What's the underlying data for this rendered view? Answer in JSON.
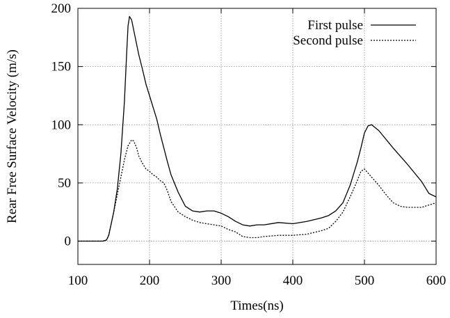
{
  "chart_data": {
    "type": "line",
    "xlabel": "Times(ns)",
    "ylabel": "Rear Free Surface Velocity (m/s)",
    "xlim": [
      100,
      600
    ],
    "ylim": [
      -20,
      200
    ],
    "xticks": [
      100,
      200,
      300,
      400,
      500,
      600
    ],
    "yticks": [
      0,
      50,
      100,
      150,
      200
    ],
    "grid": true,
    "legend_position": "top-right",
    "series": [
      {
        "name": "First pulse",
        "style": "solid",
        "color": "#000000",
        "x": [
          100,
          120,
          135,
          140,
          143,
          150,
          155,
          160,
          165,
          168,
          170,
          172,
          175,
          180,
          185,
          190,
          195,
          200,
          205,
          210,
          215,
          220,
          225,
          230,
          240,
          250,
          260,
          270,
          280,
          290,
          300,
          310,
          320,
          330,
          340,
          350,
          360,
          380,
          400,
          420,
          440,
          450,
          460,
          470,
          480,
          490,
          495,
          500,
          505,
          510,
          520,
          540,
          560,
          580,
          590,
          600
        ],
        "y": [
          0,
          0,
          0,
          1,
          5,
          25,
          45,
          75,
          120,
          160,
          185,
          193,
          190,
          175,
          160,
          148,
          135,
          125,
          115,
          105,
          92,
          80,
          68,
          57,
          42,
          30,
          26,
          25,
          26,
          26,
          24,
          21,
          17,
          14,
          13,
          14,
          14,
          16,
          15,
          17,
          20,
          22,
          26,
          33,
          48,
          68,
          80,
          93,
          99,
          100,
          95,
          80,
          66,
          51,
          41,
          38
        ]
      },
      {
        "name": "Second pulse",
        "style": "dotted",
        "color": "#000000",
        "x": [
          100,
          120,
          135,
          140,
          143,
          150,
          155,
          160,
          165,
          170,
          175,
          178,
          182,
          185,
          190,
          195,
          200,
          205,
          210,
          215,
          220,
          225,
          230,
          240,
          250,
          260,
          270,
          280,
          290,
          300,
          310,
          320,
          330,
          340,
          350,
          360,
          380,
          400,
          420,
          440,
          450,
          460,
          470,
          480,
          490,
          495,
          500,
          510,
          520,
          530,
          540,
          550,
          560,
          580,
          600
        ],
        "y": [
          0,
          0,
          0,
          1,
          5,
          25,
          40,
          55,
          70,
          82,
          87,
          86,
          80,
          73,
          67,
          62,
          60,
          57,
          55,
          52,
          50,
          43,
          34,
          25,
          21,
          18,
          16,
          15,
          14,
          13,
          10,
          8,
          4,
          3,
          3,
          4,
          5,
          5,
          6,
          9,
          11,
          17,
          25,
          38,
          52,
          60,
          62,
          55,
          48,
          40,
          33,
          30,
          29,
          29,
          33
        ]
      }
    ]
  }
}
